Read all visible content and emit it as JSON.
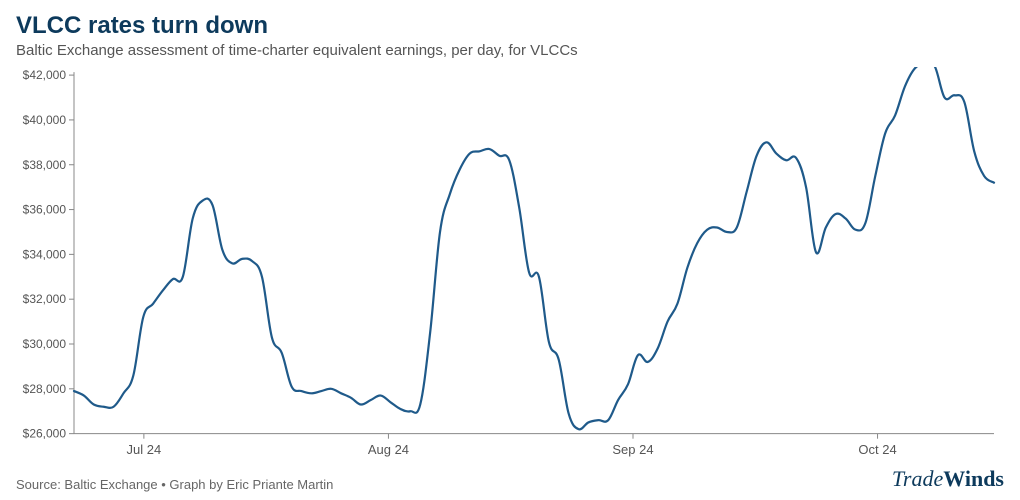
{
  "header": {
    "title": "VLCC rates turn down",
    "subtitle": "Baltic Exchange assessment of time-charter equivalent earnings, per day, for VLCCs"
  },
  "chart": {
    "type": "line",
    "line_color": "#1f5a8a",
    "line_width": 2.2,
    "background_color": "#ffffff",
    "axis_color": "#888888",
    "tick_color": "#888888",
    "ylim": [
      26000,
      42000
    ],
    "yticks": [
      26000,
      28000,
      30000,
      32000,
      34000,
      36000,
      38000,
      40000,
      42000
    ],
    "ytick_labels": [
      "$26,000",
      "$28,000",
      "$30,000",
      "$32,000",
      "$34,000",
      "$36,000",
      "$38,000",
      "$40,000",
      "$42,000"
    ],
    "xlim": [
      0,
      79
    ],
    "xticks": [
      6,
      27,
      48,
      69
    ],
    "xtick_labels": [
      "Jul 24",
      "Aug 24",
      "Sep 24",
      "Oct 24"
    ],
    "label_fontsize": 12,
    "series": {
      "values": [
        27900,
        27700,
        27300,
        27200,
        27200,
        27800,
        28600,
        31200,
        31800,
        32400,
        32900,
        33000,
        35600,
        36400,
        36200,
        34200,
        33600,
        33800,
        33700,
        33000,
        30300,
        29600,
        28100,
        27900,
        27800,
        27900,
        28000,
        27800,
        27600,
        27300,
        27500,
        27700,
        27400,
        27100,
        27000,
        27300,
        30500,
        35000,
        36700,
        37800,
        38500,
        38600,
        38700,
        38400,
        38200,
        36100,
        33200,
        33000,
        30100,
        29300,
        26900,
        26200,
        26500,
        26600,
        26600,
        27500,
        28200,
        29500,
        29200,
        29800,
        31000,
        31800,
        33400,
        34500,
        35100,
        35200,
        35000,
        35200,
        36800,
        38400,
        39000,
        38500,
        38200,
        38300,
        37000,
        34100,
        35200,
        35800,
        35600,
        35100,
        35400,
        37500,
        39400,
        40200,
        41500,
        42300,
        42500,
        42400,
        41000,
        41100,
        40800,
        38600,
        37500,
        37200
      ]
    }
  },
  "footer": {
    "source": "Source: Baltic Exchange • Graph by Eric Priante Martin",
    "brand_light": "Trade",
    "brand_bold": "Winds"
  }
}
